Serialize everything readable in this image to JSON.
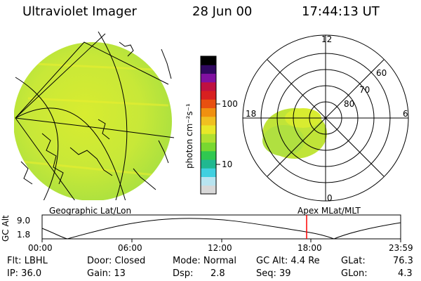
{
  "header": {
    "instrument": "Ultraviolet Imager",
    "date": "28 Jun 00",
    "time": "17:44:13 UT"
  },
  "colorbar": {
    "unit_label": "photon cm⁻²s⁻¹",
    "tick_100": "100",
    "tick_10": "10",
    "colors": [
      "#d8d8d8",
      "#b8e4f0",
      "#40d0e0",
      "#20b890",
      "#30c850",
      "#78d830",
      "#b0e030",
      "#e8e828",
      "#f0c020",
      "#f09010",
      "#e85010",
      "#d82020",
      "#c01040",
      "#8010a0",
      "#300860",
      "#000000"
    ]
  },
  "map_panel": {
    "label": "Geographic Lat/Lon"
  },
  "polar_panel": {
    "label": "Apex  MLat/MLT",
    "mlt_12": "12",
    "mlt_18": "18",
    "mlt_6": "6",
    "mlt_0": "0",
    "lat_60": "60",
    "lat_70": "70",
    "lat_80": "80"
  },
  "altitude_plot": {
    "ylabel": "GC Alt",
    "y_top": "9.0",
    "y_bottom": "1.8",
    "x_ticks": [
      "00:00",
      "06:00",
      "12:00",
      "18:00",
      "23:59"
    ],
    "marker_time": "17:44",
    "marker_color": "#ff0000"
  },
  "info": {
    "filter": "Flt:  LBHL",
    "ip": "IP:  36.0",
    "door": "Door:  Closed",
    "gain": "Gain:  13",
    "mode": "Mode:  Normal",
    "dsp_label": "Dsp:",
    "dsp_value": "2.8",
    "gc_alt": "GC Alt:  4.4 Re",
    "seq": "Seq:  39",
    "glat_label": "GLat:",
    "glat_value": "76.3",
    "glon_label": "GLon:",
    "glon_value": "4.3"
  }
}
